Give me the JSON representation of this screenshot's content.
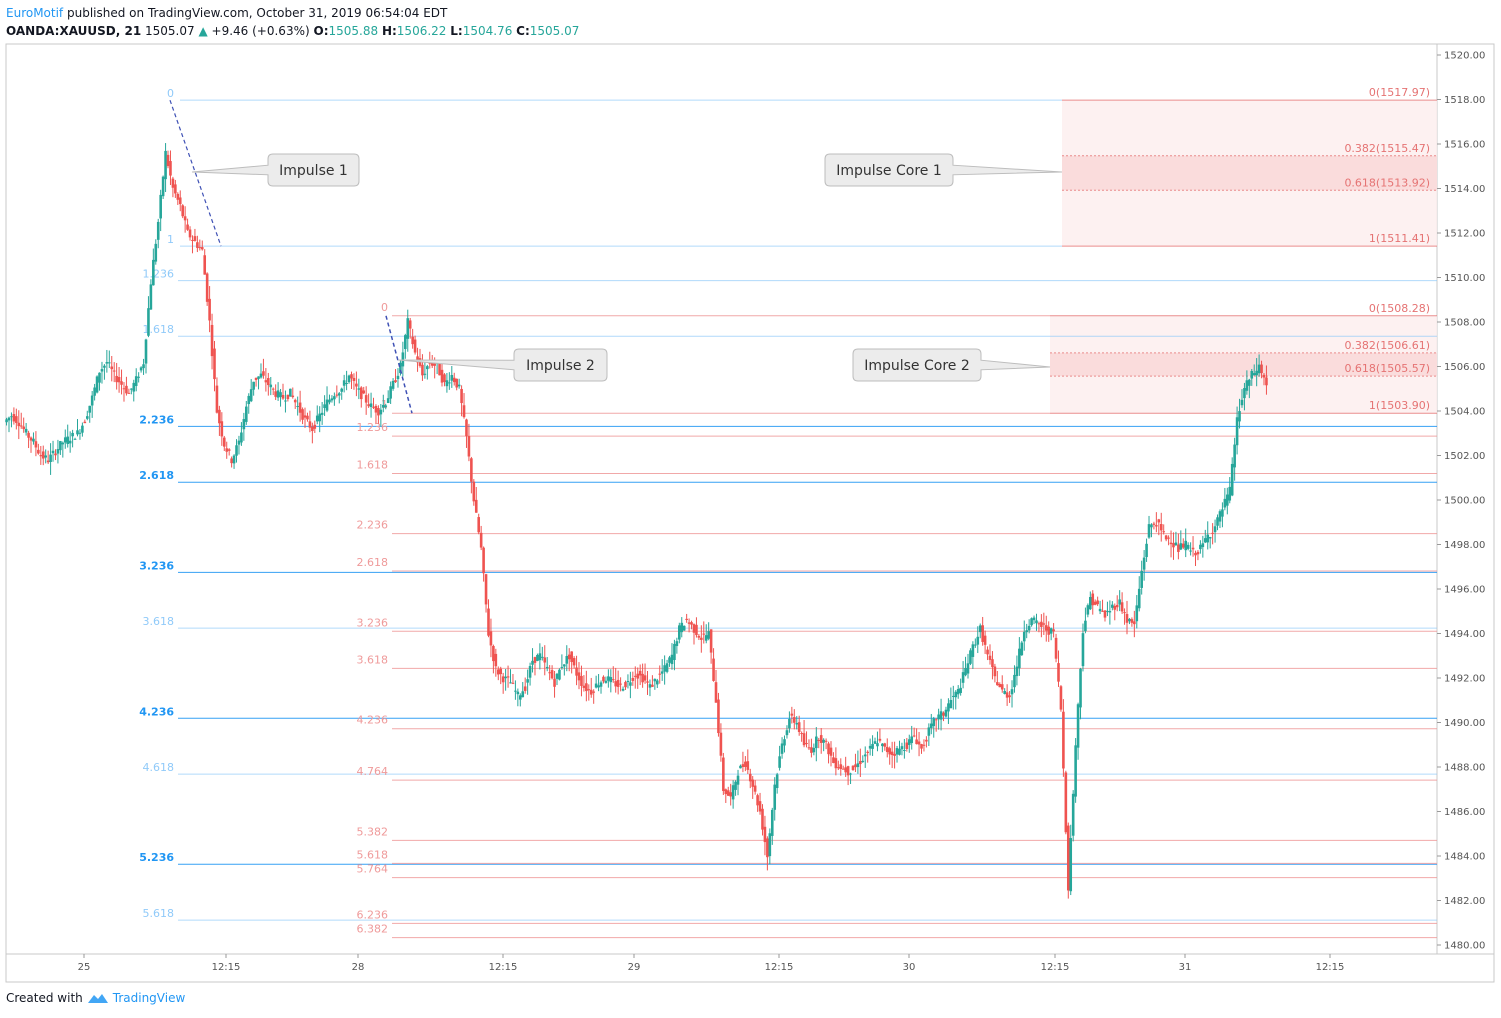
{
  "header": {
    "author": "EuroMotif",
    "published": "published on TradingView.com, October 31, 2019 06:54:04 EDT",
    "symbol": "OANDA:XAUUSD, 21",
    "last": "1505.07",
    "arrow": "▲",
    "change": "+9.46 (+0.63%)",
    "o_label": "O:",
    "o_val": "1505.88",
    "h_label": "H:",
    "h_val": "1506.22",
    "l_label": "L:",
    "l_val": "1504.76",
    "c_label": "C:",
    "c_val": "1505.07"
  },
  "footer": {
    "created": "Created with",
    "brand": "TradingView"
  },
  "colors": {
    "up": "#26a69a",
    "down": "#ef5350",
    "blue_fib": "#2196f3",
    "light_blue_fib": "#90caf9",
    "red_fib": "#ef9a9a",
    "dark_red_fib": "#e57373",
    "zone": "#fde7e7"
  },
  "chart_data": {
    "type": "candlestick",
    "y_axis": {
      "min": 1479.5,
      "max": 1521,
      "ticks": [
        "1480.00",
        "1482.00",
        "1484.00",
        "1486.00",
        "1488.00",
        "1490.00",
        "1492.00",
        "1494.00",
        "1496.00",
        "1498.00",
        "1500.00",
        "1502.00",
        "1504.00",
        "1506.00",
        "1508.00",
        "1510.00",
        "1512.00",
        "1514.00",
        "1516.00",
        "1518.00",
        "1520.00"
      ]
    },
    "x_axis": {
      "labels": [
        "25",
        "12:15",
        "28",
        "12:15",
        "29",
        "12:15",
        "30",
        "12:15",
        "31",
        "12:15"
      ]
    },
    "fib_extension_1": {
      "levels": [
        {
          "label": "0",
          "value": 1517.97,
          "style": "light"
        },
        {
          "label": "1",
          "value": 1511.41,
          "style": "light"
        },
        {
          "label": "1.236",
          "value": 1509.86,
          "style": "light"
        },
        {
          "label": "1.618",
          "value": 1507.36,
          "style": "light"
        },
        {
          "label": "2.236",
          "value": 1503.31,
          "style": "blue"
        },
        {
          "label": "2.618",
          "value": 1500.8,
          "style": "blue"
        },
        {
          "label": "3.236",
          "value": 1496.75,
          "style": "blue"
        },
        {
          "label": "3.618",
          "value": 1494.24,
          "style": "light"
        },
        {
          "label": "4.236",
          "value": 1490.19,
          "style": "blue"
        },
        {
          "label": "4.618",
          "value": 1487.68,
          "style": "light"
        },
        {
          "label": "5.236",
          "value": 1483.63,
          "style": "blue"
        },
        {
          "label": "5.618",
          "value": 1481.12,
          "style": "light"
        }
      ]
    },
    "fib_extension_2": {
      "levels": [
        {
          "label": "0",
          "value": 1508.28
        },
        {
          "label": "1",
          "value": 1503.9
        },
        {
          "label": "1.236",
          "value": 1502.87
        },
        {
          "label": "1.618",
          "value": 1501.19
        },
        {
          "label": "2.236",
          "value": 1498.49
        },
        {
          "label": "2.618",
          "value": 1496.81
        },
        {
          "label": "3.236",
          "value": 1494.1
        },
        {
          "label": "3.618",
          "value": 1492.43
        },
        {
          "label": "4.236",
          "value": 1489.72
        },
        {
          "label": "4.764",
          "value": 1487.41
        },
        {
          "label": "5.382",
          "value": 1484.7
        },
        {
          "label": "5.618",
          "value": 1483.67
        },
        {
          "label": "5.764",
          "value": 1483.03
        },
        {
          "label": "6.236",
          "value": 1480.97
        },
        {
          "label": "6.382",
          "value": 1480.33
        }
      ]
    },
    "impulse_core_1": [
      {
        "label": "0(1517.97)",
        "value": 1517.97
      },
      {
        "label": "0.382(1515.47)",
        "value": 1515.47
      },
      {
        "label": "0.618(1513.92)",
        "value": 1513.92
      },
      {
        "label": "1(1511.41)",
        "value": 1511.41
      }
    ],
    "impulse_core_2": [
      {
        "label": "0(1508.28)",
        "value": 1508.28
      },
      {
        "label": "0.382(1506.61)",
        "value": 1506.61
      },
      {
        "label": "0.618(1505.57)",
        "value": 1505.57
      },
      {
        "label": "1(1503.90)",
        "value": 1503.9
      }
    ],
    "callouts": [
      "Impulse 1",
      "Impulse Core 1",
      "Impulse 2",
      "Impulse Core 2"
    ],
    "path_points": [
      1503.8,
      1503.5,
      1503.0,
      1502.6,
      1502.0,
      1501.8,
      1502.2,
      1502.6,
      1502.8,
      1503.0,
      1503.6,
      1504.6,
      1505.8,
      1506.2,
      1505.6,
      1505.2,
      1504.8,
      1505.4,
      1506.2,
      1509.8,
      1512.5,
      1515.6,
      1514.0,
      1513.2,
      1512.0,
      1511.6,
      1511.2,
      1508.0,
      1504.0,
      1502.5,
      1501.8,
      1502.6,
      1504.2,
      1505.4,
      1505.6,
      1505.2,
      1504.8,
      1504.6,
      1504.8,
      1504.2,
      1503.6,
      1503.2,
      1503.8,
      1504.4,
      1504.8,
      1505.0,
      1505.6,
      1505.0,
      1504.6,
      1504.2,
      1504.0,
      1504.4,
      1505.2,
      1506.0,
      1508.0,
      1506.6,
      1505.6,
      1506.2,
      1506.0,
      1505.2,
      1505.6,
      1505.0,
      1502.8,
      1500.0,
      1497.8,
      1494.0,
      1492.4,
      1492.0,
      1491.8,
      1491.2,
      1491.6,
      1492.8,
      1493.0,
      1492.4,
      1491.8,
      1492.6,
      1493.0,
      1492.2,
      1491.6,
      1491.4,
      1491.8,
      1492.0,
      1491.8,
      1491.6,
      1491.8,
      1492.2,
      1492.0,
      1491.6,
      1492.0,
      1492.4,
      1493.0,
      1494.2,
      1494.6,
      1494.2,
      1493.8,
      1494.0,
      1491.0,
      1487.0,
      1486.6,
      1487.8,
      1488.2,
      1487.2,
      1486.0,
      1484.0,
      1487.2,
      1489.0,
      1490.2,
      1490.0,
      1489.0,
      1488.8,
      1489.4,
      1489.0,
      1488.2,
      1488.0,
      1487.8,
      1488.0,
      1488.4,
      1488.8,
      1489.2,
      1488.8,
      1488.6,
      1488.8,
      1489.0,
      1489.4,
      1488.8,
      1489.6,
      1490.2,
      1490.4,
      1491.0,
      1491.4,
      1492.4,
      1493.4,
      1494.2,
      1493.0,
      1492.0,
      1491.4,
      1491.2,
      1492.6,
      1494.2,
      1494.6,
      1494.4,
      1494.2,
      1494.0,
      1490.6,
      1482.6,
      1489.0,
      1494.2,
      1495.6,
      1495.2,
      1494.8,
      1495.2,
      1495.4,
      1494.6,
      1494.4,
      1496.8,
      1498.8,
      1499.0,
      1498.4,
      1498.2,
      1497.8,
      1498.0,
      1497.6,
      1497.8,
      1498.4,
      1498.8,
      1499.6,
      1500.4,
      1503.6,
      1505.0,
      1505.6,
      1506.0,
      1505.2
    ]
  }
}
